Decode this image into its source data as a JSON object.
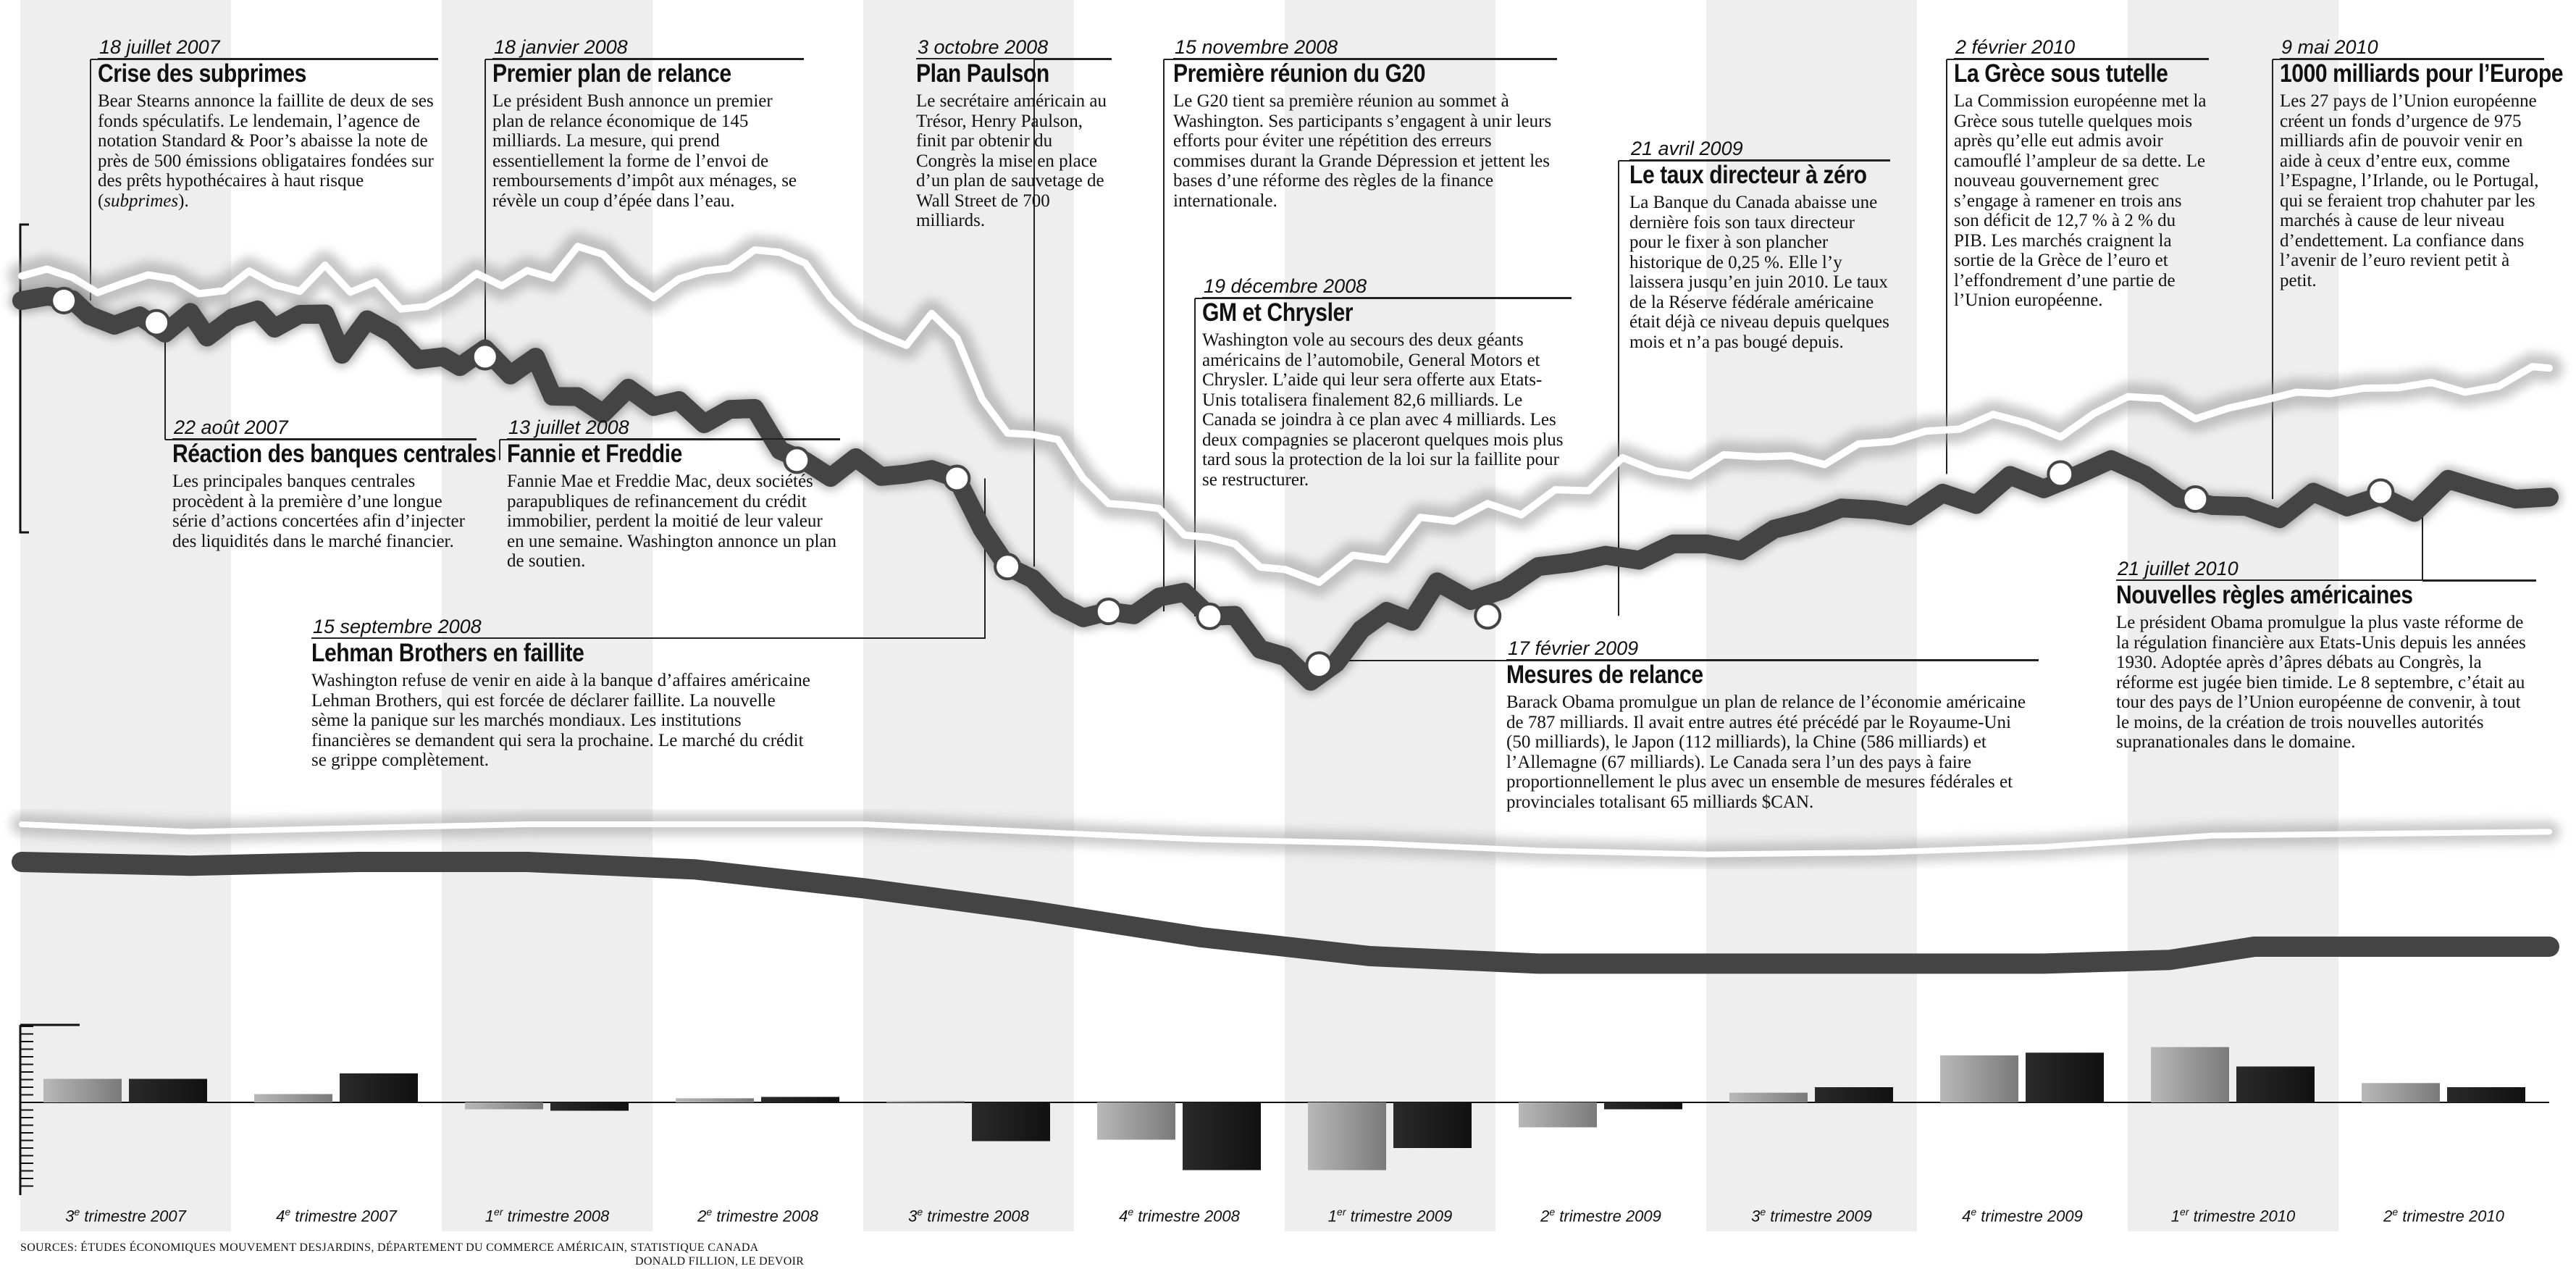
{
  "chart_data": {
    "type": "line",
    "title": "",
    "quarters": [
      "3e trimestre 2007",
      "4e trimestre 2007",
      "1er trimestre 2008",
      "2e trimestre 2008",
      "3e trimestre 2008",
      "4e trimestre 2008",
      "1er trimestre 2009",
      "2e trimestre 2009",
      "3e trimestre 2009",
      "4e trimestre 2009",
      "1er trimestre 2010",
      "2e trimestre 2010"
    ],
    "quarter_labels": [
      {
        "num": "3",
        "sup": "e",
        "rest": " trimestre 2007"
      },
      {
        "num": "4",
        "sup": "e",
        "rest": " trimestre 2007"
      },
      {
        "num": "1",
        "sup": "er",
        "rest": " trimestre 2008"
      },
      {
        "num": "2",
        "sup": "e",
        "rest": " trimestre 2008"
      },
      {
        "num": "3",
        "sup": "e",
        "rest": " trimestre 2008"
      },
      {
        "num": "4",
        "sup": "e",
        "rest": " trimestre 2008"
      },
      {
        "num": "1",
        "sup": "er",
        "rest": " trimestre 2009"
      },
      {
        "num": "2",
        "sup": "e",
        "rest": " trimestre 2009"
      },
      {
        "num": "3",
        "sup": "e",
        "rest": " trimestre 2009"
      },
      {
        "num": "4",
        "sup": "e",
        "rest": " trimestre 2009"
      },
      {
        "num": "1",
        "sup": "er",
        "rest": " trimestre 2010"
      },
      {
        "num": "2",
        "sup": "e",
        "rest": " trimestre 2010"
      }
    ],
    "x_range": [
      2007.5,
      2010.5
    ],
    "index_dark": {
      "x": [
        2007.5,
        2007.53,
        2007.56,
        2007.58,
        2007.61,
        2007.64,
        2007.67,
        2007.7,
        2007.72,
        2007.75,
        2007.78,
        2007.8,
        2007.83,
        2007.86,
        2007.88,
        2007.91,
        2007.94,
        2007.97,
        2008.0,
        2008.02,
        2008.05,
        2008.08,
        2008.11,
        2008.13,
        2008.16,
        2008.19,
        2008.22,
        2008.25,
        2008.28,
        2008.31,
        2008.34,
        2008.37,
        2008.4,
        2008.43,
        2008.46,
        2008.49,
        2008.52,
        2008.55,
        2008.58,
        2008.61,
        2008.64,
        2008.67,
        2008.7,
        2008.73,
        2008.76,
        2008.79,
        2008.82,
        2008.85,
        2008.88,
        2008.91,
        2008.94,
        2008.97,
        2009.0,
        2009.03,
        2009.06,
        2009.09,
        2009.12,
        2009.15,
        2009.18,
        2009.22,
        2009.26,
        2009.3,
        2009.34,
        2009.38,
        2009.42,
        2009.46,
        2009.5,
        2009.54,
        2009.58,
        2009.62,
        2009.66,
        2009.7,
        2009.74,
        2009.78,
        2009.82,
        2009.86,
        2009.9,
        2009.94,
        2009.98,
        2010.02,
        2010.06,
        2010.1,
        2010.14,
        2010.18,
        2010.22,
        2010.26,
        2010.3,
        2010.34,
        2010.38,
        2010.42,
        2010.46,
        2010.5
      ],
      "y": [
        100.0,
        100.9,
        100.2,
        97.0,
        95.0,
        96.9,
        93.4,
        97.6,
        92.6,
        96.5,
        98.1,
        94.4,
        97.2,
        97.3,
        89.1,
        96.1,
        93.3,
        88.0,
        88.6,
        86.6,
        90.2,
        84.9,
        88.5,
        80.6,
        80.5,
        77.1,
        82.2,
        78.5,
        79.7,
        75.0,
        77.9,
        78.1,
        69.6,
        67.4,
        64.1,
        68.1,
        64.3,
        64.8,
        65.7,
        63.9,
        53.6,
        46.0,
        43.5,
        38.2,
        35.6,
        36.9,
        36.2,
        39.8,
        40.8,
        35.9,
        36.1,
        29.2,
        27.7,
        22.7,
        26.4,
        33.2,
        36.9,
        34.9,
        42.9,
        39.1,
        41.4,
        46.0,
        46.8,
        48.3,
        47.3,
        50.6,
        50.6,
        49.2,
        53.6,
        55.3,
        57.9,
        57.5,
        56.3,
        60.9,
        58.6,
        64.5,
        61.8,
        64.6,
        67.7,
        64.6,
        59.9,
        58.4,
        58.2,
        55.7,
        61.1,
        58.1,
        60.3,
        57.0,
        63.7,
        61.6,
        59.7,
        60.1
      ]
    },
    "index_light": {
      "x": [
        2007.5,
        2007.53,
        2007.56,
        2007.59,
        2007.62,
        2007.65,
        2007.68,
        2007.71,
        2007.74,
        2007.77,
        2007.8,
        2007.83,
        2007.86,
        2007.89,
        2007.92,
        2007.95,
        2007.98,
        2008.01,
        2008.04,
        2008.07,
        2008.1,
        2008.13,
        2008.16,
        2008.19,
        2008.22,
        2008.25,
        2008.28,
        2008.31,
        2008.34,
        2008.37,
        2008.4,
        2008.43,
        2008.46,
        2008.49,
        2008.52,
        2008.55,
        2008.58,
        2008.61,
        2008.64,
        2008.67,
        2008.7,
        2008.73,
        2008.76,
        2008.79,
        2008.82,
        2008.85,
        2008.88,
        2008.91,
        2008.94,
        2008.97,
        2009.0,
        2009.04,
        2009.08,
        2009.12,
        2009.16,
        2009.2,
        2009.24,
        2009.28,
        2009.32,
        2009.36,
        2009.4,
        2009.44,
        2009.48,
        2009.52,
        2009.56,
        2009.6,
        2009.64,
        2009.68,
        2009.72,
        2009.76,
        2009.8,
        2009.84,
        2009.88,
        2009.92,
        2009.96,
        2010.0,
        2010.04,
        2010.08,
        2010.12,
        2010.16,
        2010.2,
        2010.24,
        2010.28,
        2010.32,
        2010.36,
        2010.4,
        2010.44,
        2010.48,
        2010.5
      ],
      "y": [
        105.0,
        106.4,
        104.7,
        101.6,
        103.5,
        105.2,
        104.4,
        101.4,
        102.0,
        106.0,
        103.2,
        101.9,
        107.2,
        101.7,
        103.8,
        98.3,
        98.8,
        101.6,
        105.5,
        103.0,
        106.1,
        104.6,
        111.0,
        109.4,
        104.2,
        100.6,
        104.4,
        106.0,
        106.6,
        110.3,
        109.8,
        107.6,
        100.5,
        95.6,
        93.0,
        90.9,
        97.4,
        92.4,
        80.0,
        73.1,
        72.8,
        71.8,
        63.9,
        58.8,
        58.4,
        57.8,
        52.4,
        51.9,
        50.6,
        45.9,
        45.4,
        42.8,
        48.3,
        47.4,
        56.0,
        55.2,
        58.8,
        56.5,
        61.6,
        61.4,
        68.1,
        65.4,
        64.4,
        68.7,
        68.3,
        68.5,
        66.7,
        70.9,
        71.4,
        73.5,
        73.9,
        76.9,
        75.1,
        72.3,
        77.1,
        80.5,
        80.1,
        76.0,
        78.2,
        79.7,
        81.4,
        81.1,
        82.2,
        82.3,
        83.4,
        81.4,
        82.6,
        86.6,
        86.3
      ]
    },
    "long_dark": {
      "x": [
        2007.5,
        2007.7,
        2007.9,
        2008.1,
        2008.3,
        2008.5,
        2008.7,
        2008.9,
        2009.1,
        2009.3,
        2009.5,
        2009.7,
        2009.9,
        2010.05,
        2010.15,
        2010.3,
        2010.5
      ],
      "y": [
        90,
        89.8,
        90.0,
        90.0,
        89.6,
        88.6,
        87.4,
        86.0,
        85.0,
        84.6,
        84.6,
        84.6,
        84.6,
        84.8,
        85.5,
        85.5,
        85.5
      ]
    },
    "long_light": {
      "x": [
        2007.5,
        2007.7,
        2007.9,
        2008.1,
        2008.3,
        2008.5,
        2008.7,
        2008.9,
        2009.1,
        2009.3,
        2009.5,
        2009.7,
        2009.9,
        2010.1,
        2010.3,
        2010.5
      ],
      "y": [
        92.0,
        91.6,
        91.8,
        92.0,
        92.0,
        92.0,
        91.6,
        91.2,
        91.0,
        90.6,
        90.4,
        90.5,
        90.8,
        91.4,
        91.5,
        91.6
      ]
    },
    "bars": {
      "series": [
        {
          "values": [
            1.7,
            0.6,
            -0.5,
            0.3,
            0.1,
            -2.7,
            -4.9,
            -1.8,
            0.7,
            3.4,
            4.0,
            1.4
          ]
        },
        {
          "values": [
            1.7,
            2.1,
            -0.6,
            0.4,
            -2.8,
            -4.9,
            -3.3,
            -0.5,
            1.1,
            3.6,
            2.6,
            1.1
          ]
        }
      ],
      "ylim": [
        -5.5,
        5.5
      ]
    },
    "events": [
      {
        "date": "18 juillet 2007",
        "title": "Crise des subprimes",
        "text": "Bear Stearns annonce la faillite de deux de ses fonds spéculatifs. Le lendemain, l’agence de notation Standard & Poor’s abaisse la note de près de 500 émissions obligataires fondées sur des prêts hypothécaires à haut risque (",
        "text_em": "subprimes",
        "text_tail": ")."
      },
      {
        "date": "22 août 2007",
        "title": "Réaction des banques centrales",
        "text": "Les principales banques centrales procèdent à la première d’une longue série d’actions concertées afin d’injecter des liquidités dans le marché financier."
      },
      {
        "date": "18 janvier 2008",
        "title": "Premier plan de relance",
        "text": "Le président Bush annonce un premier plan de relance économique de 145 milliards. La mesure, qui prend essentiellement la forme de l’envoi de remboursements d’impôt aux ménages, se révèle un coup d’épée dans l’eau."
      },
      {
        "date": "13 juillet 2008",
        "title": "Fannie et Freddie",
        "text": "Fannie Mae et Freddie Mac, deux sociétés parapubliques de refinancement du crédit immobilier, perdent la moitié de leur valeur en une semaine. Washington annonce un plan de soutien."
      },
      {
        "date": "15 septembre 2008",
        "title": "Lehman Brothers en faillite",
        "text": "Washington refuse de venir en aide à la banque d’affaires américaine Lehman Brothers, qui est forcée de déclarer faillite. La nouvelle sème la panique sur les marchés mondiaux. Les institutions financières se demandent qui sera la prochaine. Le marché du crédit se grippe complètement."
      },
      {
        "date": "3 octobre 2008",
        "title": "Plan Paulson",
        "text": "Le secrétaire américain au Trésor, Henry Paulson, finit par obtenir du Congrès la mise en place d’un plan de sauvetage de Wall Street de 700 milliards."
      },
      {
        "date": "15 novembre 2008",
        "title": "Première réunion du G20",
        "text": "Le G20 tient sa première réunion au sommet à Washington. Ses participants s’engagent à unir leurs efforts pour éviter une répétition des erreurs commises durant la Grande Dépression et jettent les bases d’une réforme des règles de la finance internationale."
      },
      {
        "date": "19 décembre 2008",
        "title": "GM et Chrysler",
        "text": "Washington vole au secours des deux géants américains de l’automobile, General Motors et Chrysler. L’aide qui leur sera offerte aux Etats-Unis totalisera finalement 82,6 milliards. Le Canada se joindra à ce plan avec 4 milliards. Les deux compagnies se placeront quelques mois plus tard sous la protection de la loi sur la faillite pour se restructurer."
      },
      {
        "date": "17 février 2009",
        "title": "Mesures de relance",
        "text": "Barack Obama promulgue un plan de relance de l’économie américaine de 787 milliards. Il avait entre autres été précédé par le Royaume-Uni (50 milliards), le Japon (112 milliards), la Chine (586 milliards) et l’Allemagne (67 milliards). Le Canada sera l’un des pays à faire proportionnellement le plus avec un ensemble de mesures fédérales et provinciales totalisant 65 milliards $CAN."
      },
      {
        "date": "21 avril 2009",
        "title": "Le taux directeur à zéro",
        "text": "La Banque du Canada abaisse une dernière fois son taux directeur pour le fixer à son plancher historique de 0,25 %. Elle l’y laissera jusqu’en juin 2010. Le taux de la Réserve fédérale américaine était déjà ce niveau depuis quelques mois et n’a pas bougé depuis."
      },
      {
        "date": "2 février 2010",
        "title": "La Grèce sous tutelle",
        "text": "La Commission européenne met la Grèce sous tutelle quelques mois après qu’elle eut admis avoir camouflé l’ampleur de sa dette. Le nouveau gouvernement grec s’engage à ramener en trois ans son déficit de 12,7 % à 2 % du PIB. Les marchés craignent la sortie de la Grèce de l’euro et l’effondrement d’une partie de l’Union européenne."
      },
      {
        "date": "9 mai 2010",
        "title": "1000 milliards pour l’Europe",
        "text": "Les 27 pays de l’Union européenne créent un fonds d’urgence de 975 milliards afin de pouvoir venir en aide à ceux d’entre eux, comme l’Espagne, l’Irlande, ou le Portugal, qui se feraient trop chahuter par les marchés à cause de leur niveau d’endettement. La confiance dans l’avenir de l’euro revient petit à petit."
      },
      {
        "date": "21 juillet 2010",
        "title": "Nouvelles règles américaines",
        "text": "Le président Obama promulgue la plus vaste réforme de la régulation financière aux Etats-Unis depuis les années 1930. Adoptée après d’âpres débats au Congrès, la réforme est jugée bien timide. Le 8 septembre, c’était au tour des pays de l’Union européenne de convenir, à tout le moins, de la création de trois nouvelles autorités supranationales dans le domaine."
      }
    ],
    "colors": {
      "dark": "#444444",
      "light": "#ffffff",
      "band": "#eeeeee",
      "bar_dark": "#1a1a1a",
      "bar_light": "#9a9a9a"
    }
  },
  "sources": "SOURCES: ÉTUDES ÉCONOMIQUES MOUVEMENT DESJARDINS, DÉPARTEMENT DU COMMERCE AMÉRICAIN, STATISTIQUE CANADA",
  "credit": "DONALD FILLION, LE DEVOIR"
}
